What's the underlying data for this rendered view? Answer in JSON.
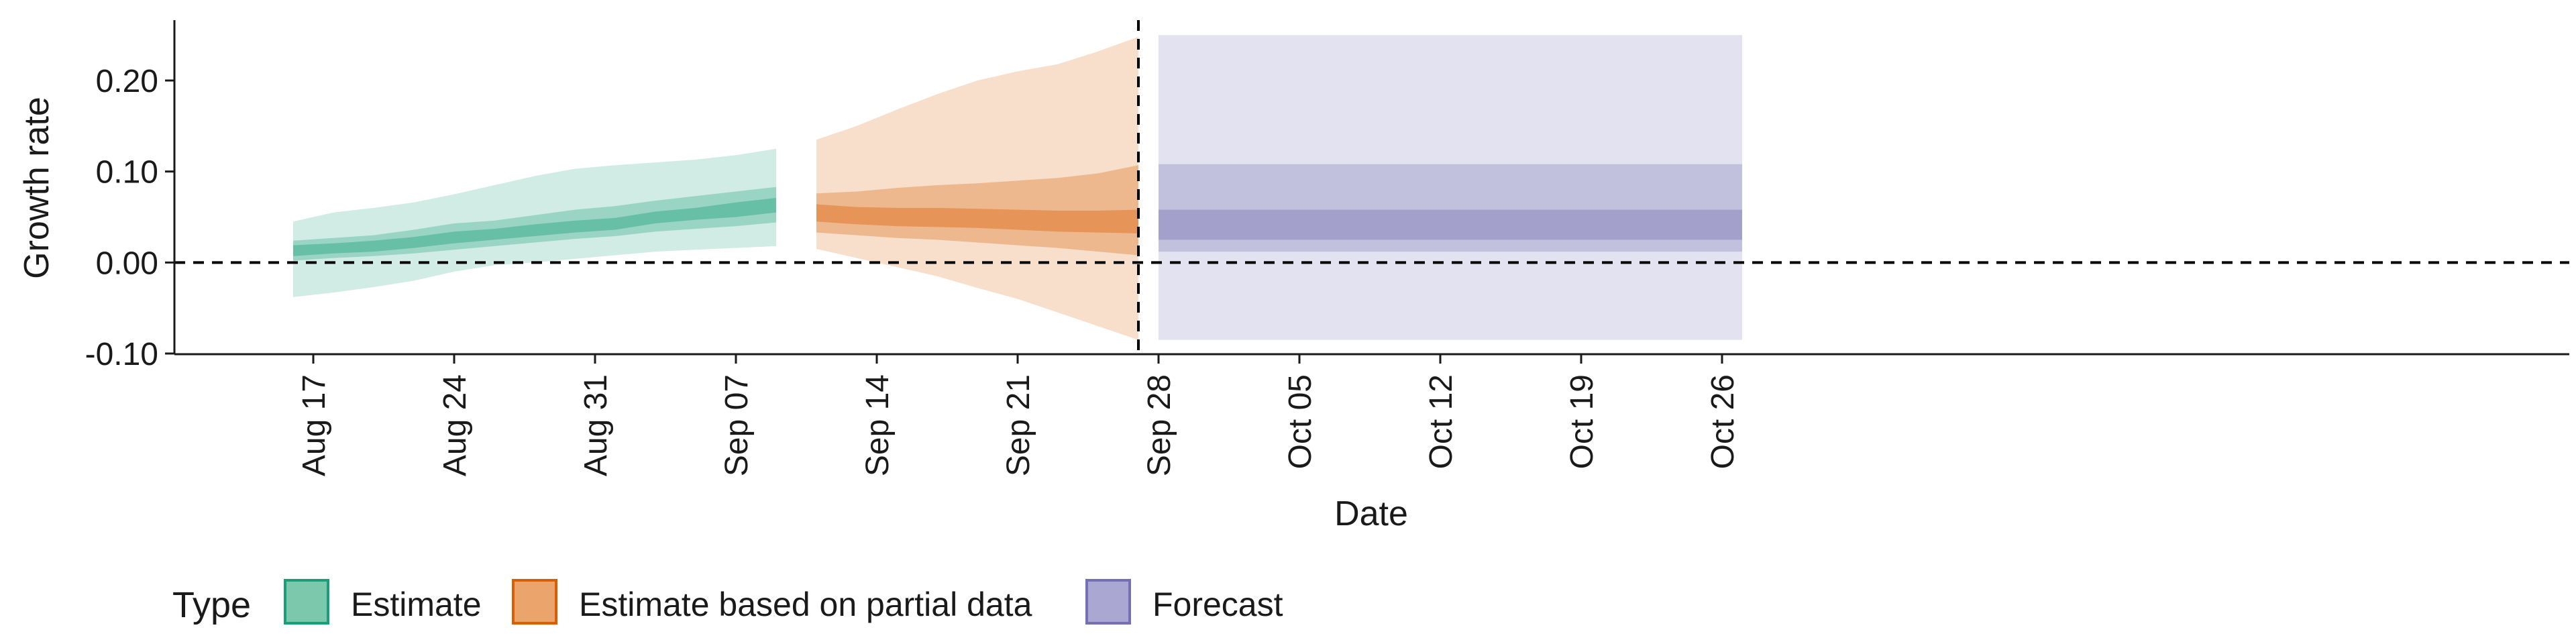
{
  "chart_data": {
    "type": "area",
    "title": "",
    "xlabel": "Date",
    "ylabel": "Growth rate",
    "ylim": [
      -0.1,
      0.25
    ],
    "xlim": [
      "2020-08-10",
      "2020-10-31"
    ],
    "x_ticks": [
      {
        "date": "2020-08-17",
        "label": "Aug 17"
      },
      {
        "date": "2020-08-24",
        "label": "Aug 24"
      },
      {
        "date": "2020-08-31",
        "label": "Aug 31"
      },
      {
        "date": "2020-09-07",
        "label": "Sep 07"
      },
      {
        "date": "2020-09-14",
        "label": "Sep 14"
      },
      {
        "date": "2020-09-21",
        "label": "Sep 21"
      },
      {
        "date": "2020-09-28",
        "label": "Sep 28"
      },
      {
        "date": "2020-10-05",
        "label": "Oct 05"
      },
      {
        "date": "2020-10-12",
        "label": "Oct 12"
      },
      {
        "date": "2020-10-19",
        "label": "Oct 19"
      },
      {
        "date": "2020-10-26",
        "label": "Oct 26"
      }
    ],
    "y_ticks": [
      {
        "value": -0.1,
        "label": "-0.10"
      },
      {
        "value": 0.0,
        "label": "0.00"
      },
      {
        "value": 0.1,
        "label": "0.10"
      },
      {
        "value": 0.2,
        "label": "0.20"
      }
    ],
    "reference_lines": {
      "horizontal": {
        "value": 0.0,
        "style": "dashed"
      },
      "vertical": {
        "date": "2020-09-27",
        "style": "dashed"
      }
    },
    "grid": false,
    "legend": {
      "title": "Type",
      "position": "bottom-left",
      "entries": [
        {
          "label": "Estimate",
          "fill": "#7cc8ad",
          "stroke": "#1b9e77"
        },
        {
          "label": "Estimate based on partial data",
          "fill": "#eba46c",
          "stroke": "#d95f02"
        },
        {
          "label": "Forecast",
          "fill": "#aaa7d2",
          "stroke": "#7570b3"
        }
      ]
    },
    "series": [
      {
        "name": "Estimate",
        "color": "#1b9e77",
        "points": [
          {
            "date": "2020-08-16",
            "median": 0.012,
            "lo20": 0.007,
            "hi20": 0.019,
            "lo50": 0.002,
            "hi50": 0.024,
            "lo90": -0.038,
            "hi90": 0.045
          },
          {
            "date": "2020-08-18",
            "median": 0.015,
            "lo20": 0.01,
            "hi20": 0.021,
            "lo50": 0.005,
            "hi50": 0.027,
            "lo90": -0.033,
            "hi90": 0.055
          },
          {
            "date": "2020-08-20",
            "median": 0.018,
            "lo20": 0.012,
            "hi20": 0.024,
            "lo50": 0.007,
            "hi50": 0.03,
            "lo90": -0.027,
            "hi90": 0.06
          },
          {
            "date": "2020-08-22",
            "median": 0.022,
            "lo20": 0.016,
            "hi20": 0.028,
            "lo50": 0.01,
            "hi50": 0.036,
            "lo90": -0.02,
            "hi90": 0.066
          },
          {
            "date": "2020-08-24",
            "median": 0.028,
            "lo20": 0.021,
            "hi20": 0.034,
            "lo50": 0.014,
            "hi50": 0.043,
            "lo90": -0.01,
            "hi90": 0.075
          },
          {
            "date": "2020-08-26",
            "median": 0.031,
            "lo20": 0.025,
            "hi20": 0.037,
            "lo50": 0.018,
            "hi50": 0.046,
            "lo90": -0.003,
            "hi90": 0.085
          },
          {
            "date": "2020-08-28",
            "median": 0.035,
            "lo20": 0.029,
            "hi20": 0.042,
            "lo50": 0.022,
            "hi50": 0.052,
            "lo90": 0.0,
            "hi90": 0.095
          },
          {
            "date": "2020-08-30",
            "median": 0.04,
            "lo20": 0.033,
            "hi20": 0.046,
            "lo50": 0.026,
            "hi50": 0.058,
            "lo90": 0.004,
            "hi90": 0.103
          },
          {
            "date": "2020-09-01",
            "median": 0.042,
            "lo20": 0.036,
            "hi20": 0.049,
            "lo50": 0.029,
            "hi50": 0.062,
            "lo90": 0.008,
            "hi90": 0.107
          },
          {
            "date": "2020-09-03",
            "median": 0.05,
            "lo20": 0.043,
            "hi20": 0.056,
            "lo50": 0.034,
            "hi50": 0.068,
            "lo90": 0.012,
            "hi90": 0.11
          },
          {
            "date": "2020-09-05",
            "median": 0.054,
            "lo20": 0.047,
            "hi20": 0.06,
            "lo50": 0.037,
            "hi50": 0.073,
            "lo90": 0.014,
            "hi90": 0.113
          },
          {
            "date": "2020-09-07",
            "median": 0.058,
            "lo20": 0.05,
            "hi20": 0.066,
            "lo50": 0.04,
            "hi50": 0.078,
            "lo90": 0.016,
            "hi90": 0.118
          },
          {
            "date": "2020-09-09",
            "median": 0.063,
            "lo20": 0.055,
            "hi20": 0.071,
            "lo50": 0.044,
            "hi50": 0.083,
            "lo90": 0.018,
            "hi90": 0.125
          }
        ]
      },
      {
        "name": "Estimate based on partial data",
        "color": "#d95f02",
        "points": [
          {
            "date": "2020-09-11",
            "median": 0.055,
            "lo20": 0.045,
            "hi20": 0.064,
            "lo50": 0.033,
            "hi50": 0.076,
            "lo90": 0.015,
            "hi90": 0.135
          },
          {
            "date": "2020-09-13",
            "median": 0.052,
            "lo20": 0.042,
            "hi20": 0.061,
            "lo50": 0.03,
            "hi50": 0.078,
            "lo90": 0.005,
            "hi90": 0.15
          },
          {
            "date": "2020-09-15",
            "median": 0.05,
            "lo20": 0.04,
            "hi20": 0.06,
            "lo50": 0.027,
            "hi50": 0.082,
            "lo90": -0.005,
            "hi90": 0.168
          },
          {
            "date": "2020-09-17",
            "median": 0.05,
            "lo20": 0.039,
            "hi20": 0.06,
            "lo50": 0.025,
            "hi50": 0.085,
            "lo90": -0.015,
            "hi90": 0.185
          },
          {
            "date": "2020-09-19",
            "median": 0.049,
            "lo20": 0.038,
            "hi20": 0.059,
            "lo50": 0.022,
            "hi50": 0.087,
            "lo90": -0.028,
            "hi90": 0.2
          },
          {
            "date": "2020-09-21",
            "median": 0.047,
            "lo20": 0.036,
            "hi20": 0.058,
            "lo50": 0.019,
            "hi50": 0.09,
            "lo90": -0.04,
            "hi90": 0.21
          },
          {
            "date": "2020-09-23",
            "median": 0.045,
            "lo20": 0.034,
            "hi20": 0.057,
            "lo50": 0.016,
            "hi50": 0.093,
            "lo90": -0.055,
            "hi90": 0.218
          },
          {
            "date": "2020-09-25",
            "median": 0.045,
            "lo20": 0.033,
            "hi20": 0.057,
            "lo50": 0.012,
            "hi50": 0.098,
            "lo90": -0.07,
            "hi90": 0.232
          },
          {
            "date": "2020-09-27",
            "median": 0.045,
            "lo20": 0.032,
            "hi20": 0.058,
            "lo50": 0.008,
            "hi50": 0.107,
            "lo90": -0.085,
            "hi90": 0.248
          }
        ]
      },
      {
        "name": "Forecast",
        "color": "#7570b3",
        "points": [
          {
            "date": "2020-09-28",
            "median": 0.042,
            "lo20": 0.025,
            "hi20": 0.058,
            "lo50": 0.012,
            "hi50": 0.108,
            "lo90": -0.085,
            "hi90": 0.25
          },
          {
            "date": "2020-10-27",
            "median": 0.042,
            "lo20": 0.025,
            "hi20": 0.058,
            "lo50": 0.012,
            "hi50": 0.108,
            "lo90": -0.085,
            "hi90": 0.25
          }
        ]
      }
    ]
  }
}
